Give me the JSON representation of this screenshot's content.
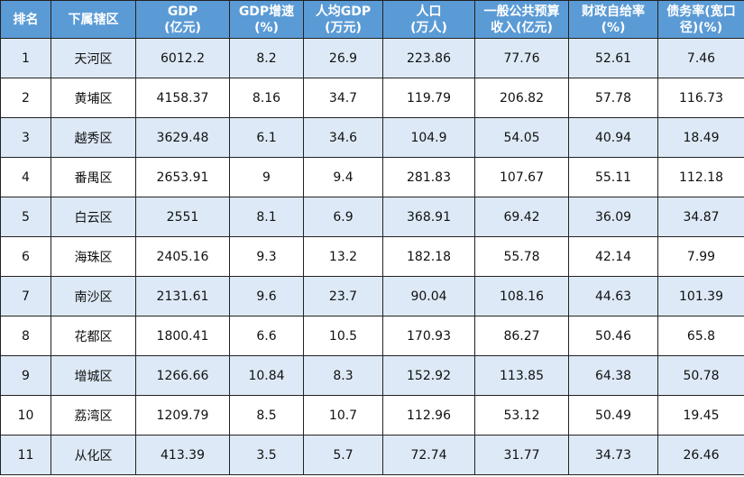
{
  "colors": {
    "header_bg": "#5b9bd5",
    "header_text": "#ffffff",
    "row_alt_bg": "#dde9f6",
    "row_bg": "#ffffff",
    "border": "#222222"
  },
  "table": {
    "headers": [
      [
        "排名"
      ],
      [
        "下属辖区"
      ],
      [
        "GDP",
        "(亿元)"
      ],
      [
        "GDP增速",
        "(%)"
      ],
      [
        "人均GDP",
        "(万元)"
      ],
      [
        "人口",
        "(万人)"
      ],
      [
        "一般公共预算",
        "收入(亿元)"
      ],
      [
        "财政自给率",
        "(%)"
      ],
      [
        "债务率(宽口",
        "径)(%)"
      ]
    ],
    "rows": [
      [
        "1",
        "天河区",
        "6012.2",
        "8.2",
        "26.9",
        "223.86",
        "77.76",
        "52.61",
        "7.46"
      ],
      [
        "2",
        "黄埔区",
        "4158.37",
        "8.16",
        "34.7",
        "119.79",
        "206.82",
        "57.78",
        "116.73"
      ],
      [
        "3",
        "越秀区",
        "3629.48",
        "6.1",
        "34.6",
        "104.9",
        "54.05",
        "40.94",
        "18.49"
      ],
      [
        "4",
        "番禺区",
        "2653.91",
        "9",
        "9.4",
        "281.83",
        "107.67",
        "55.11",
        "112.18"
      ],
      [
        "5",
        "白云区",
        "2551",
        "8.1",
        "6.9",
        "368.91",
        "69.42",
        "36.09",
        "34.87"
      ],
      [
        "6",
        "海珠区",
        "2405.16",
        "9.3",
        "13.2",
        "182.18",
        "55.78",
        "42.14",
        "7.99"
      ],
      [
        "7",
        "南沙区",
        "2131.61",
        "9.6",
        "23.7",
        "90.04",
        "108.16",
        "44.63",
        "101.39"
      ],
      [
        "8",
        "花都区",
        "1800.41",
        "6.6",
        "10.5",
        "170.93",
        "86.27",
        "50.46",
        "65.8"
      ],
      [
        "9",
        "增城区",
        "1266.66",
        "10.84",
        "8.3",
        "152.92",
        "113.85",
        "64.38",
        "50.78"
      ],
      [
        "10",
        "荔湾区",
        "1209.79",
        "8.5",
        "10.7",
        "112.96",
        "53.12",
        "50.49",
        "19.45"
      ],
      [
        "11",
        "从化区",
        "413.39",
        "3.5",
        "5.7",
        "72.74",
        "31.77",
        "34.73",
        "26.46"
      ]
    ]
  }
}
